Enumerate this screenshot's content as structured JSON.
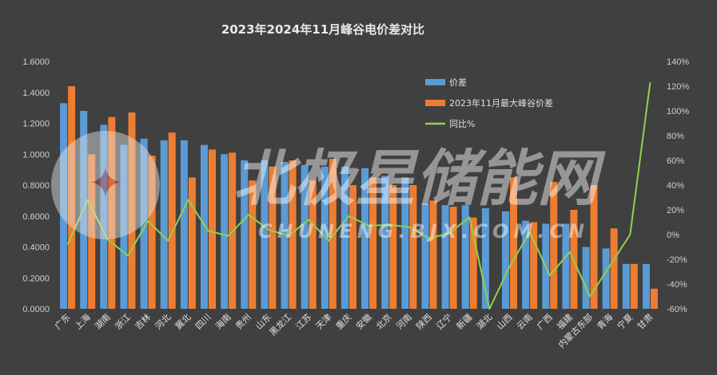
{
  "chart_data": {
    "type": "bar",
    "title": "2023年2024年11月峰谷电价差对比",
    "categories": [
      "广东",
      "上海",
      "湖南",
      "浙江",
      "吉林",
      "河北",
      "冀北",
      "四川",
      "海南",
      "贵州",
      "山东",
      "黑龙江",
      "江苏",
      "天津",
      "重庆",
      "安徽",
      "北京",
      "河南",
      "陕西",
      "辽宁",
      "新疆",
      "湖北",
      "山西",
      "云南",
      "广西",
      "福建",
      "内蒙古东部",
      "青海",
      "宁夏",
      "甘肃"
    ],
    "series": [
      {
        "name": "价差",
        "type": "bar",
        "axis": "left",
        "color": "#5b9bd5",
        "values": [
          1.33,
          1.28,
          1.19,
          1.06,
          1.1,
          1.09,
          1.09,
          1.06,
          1.0,
          0.96,
          0.96,
          0.95,
          0.93,
          0.92,
          0.92,
          0.91,
          0.86,
          0.85,
          0.68,
          0.67,
          0.67,
          0.65,
          0.63,
          0.57,
          0.55,
          0.55,
          0.4,
          0.39,
          0.29,
          0.29
        ]
      },
      {
        "name": "2023年11月最大峰谷价差",
        "type": "bar",
        "axis": "left",
        "color": "#ed7d31",
        "values": [
          1.44,
          1.0,
          1.24,
          1.27,
          0.99,
          1.14,
          0.85,
          1.03,
          1.01,
          0.83,
          0.92,
          0.96,
          0.83,
          0.97,
          0.8,
          0.85,
          0.8,
          0.8,
          0.7,
          0.66,
          0.59,
          0.0,
          0.85,
          0.56,
          0.82,
          0.64,
          0.8,
          0.52,
          0.29,
          0.13
        ]
      },
      {
        "name": "同比%",
        "type": "line",
        "axis": "right",
        "color": "#92d050",
        "values": [
          -8,
          28,
          -4,
          -17,
          11,
          -5,
          28,
          3,
          -1,
          16,
          4,
          -1,
          12,
          -5,
          15,
          7,
          8,
          6,
          -3,
          1,
          14,
          -100,
          -26,
          2,
          -33,
          -14,
          -50,
          -25,
          0,
          123
        ]
      }
    ],
    "ylim_left": [
      0,
      1.6
    ],
    "yticks_left": [
      "0.0000",
      "0.2000",
      "0.4000",
      "0.6000",
      "0.8000",
      "1.0000",
      "1.2000",
      "1.4000",
      "1.6000"
    ],
    "ylim_right": [
      -60,
      140
    ],
    "yticks_right": [
      "-60%",
      "-40%",
      "-20%",
      "0%",
      "20%",
      "40%",
      "60%",
      "80%",
      "100%",
      "120%",
      "140%"
    ],
    "grid": false,
    "legend_position": "top-right inside plot",
    "background": "#404040",
    "watermark": {
      "main": "北极星储能网",
      "sub": "CHUNENG.BJX.COM.CN"
    }
  }
}
